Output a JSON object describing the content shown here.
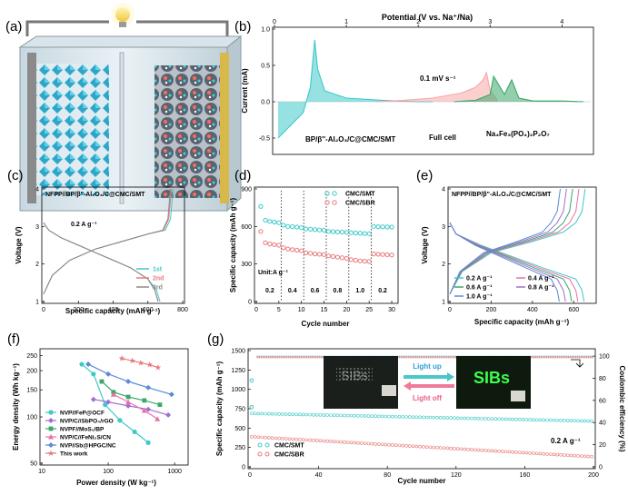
{
  "colors": {
    "teal": "#3fc8c8",
    "red": "#e87a7a",
    "green": "#3aa86a",
    "pink": "#e870a8",
    "blue": "#5a8ad8",
    "purple": "#a070d0",
    "gray": "#8a8a8a",
    "light": "#f8a8a8"
  },
  "panels": {
    "a": {
      "label": "(a)",
      "icon": "lightbulb-icon"
    },
    "b": {
      "label": "(b)",
      "title": "Potential (V vs. Na⁺/Na)",
      "ylabel": "Current (mA)",
      "xticks": [
        "0",
        "1",
        "2",
        "3",
        "4"
      ],
      "yticks": [
        "1.0",
        "0.5",
        "0.0",
        "-0.5"
      ],
      "annot_rate": "0.1 mV s⁻¹",
      "annot_anode": "BP/β''-Al₂O₃/C@CMC/SMT",
      "annot_full": "Full cell",
      "annot_cathode": "Na₄Fe₃(PO₄)₂P₂O₇",
      "chart_data": {
        "type": "line",
        "xlabel": "Potential (V vs. Na+/Na)",
        "ylabel": "Current (mA)",
        "xlim": [
          0,
          4.4
        ],
        "ylim": [
          -0.7,
          1.0
        ],
        "series": [
          {
            "name": "BP/β''-Al2O3/C@CMC/SMT",
            "x": [
              0.05,
              0.2,
              0.4,
              0.5,
              0.56,
              0.6,
              0.7,
              1.0,
              1.5,
              2.0,
              2.2
            ],
            "y": [
              -0.5,
              -0.35,
              -0.15,
              0.2,
              0.85,
              0.45,
              0.15,
              0.05,
              0.02,
              0.0,
              0.0
            ]
          },
          {
            "name": "Full cell",
            "x": [
              1.4,
              1.8,
              2.2,
              2.6,
              2.8,
              2.9,
              2.95,
              3.0,
              3.1
            ],
            "y": [
              0.0,
              0.02,
              0.05,
              0.12,
              0.2,
              0.3,
              0.4,
              0.15,
              0.02
            ]
          },
          {
            "name": "Na4Fe3(PO4)2P2O7",
            "x": [
              2.5,
              2.8,
              3.0,
              3.05,
              3.2,
              3.3,
              3.4,
              3.6,
              4.0,
              4.3
            ],
            "y": [
              0.0,
              0.02,
              0.1,
              0.35,
              0.1,
              0.3,
              0.05,
              0.01,
              0.01,
              0.0
            ]
          }
        ]
      }
    },
    "c": {
      "label": "(c)",
      "header": "NFPP//BP/β''-Al₂O₃/C@CMC/SMT",
      "rate": "0.2 A g⁻¹",
      "xlabel": "Specific capacity (mAh g⁻¹)",
      "ylabel": "Voltage (V)",
      "xticks": [
        "0",
        "200",
        "400",
        "600",
        "800"
      ],
      "yticks": [
        "1",
        "2",
        "3",
        "4"
      ],
      "legend": [
        "1st",
        "2nd",
        "3rd"
      ],
      "chart_data": {
        "type": "line",
        "xlim": [
          0,
          800
        ],
        "ylim": [
          1,
          4
        ],
        "series": [
          {
            "name": "1st",
            "charge_x": [
              0,
              50,
              150,
              300,
              450,
              600,
              700,
              730,
              745
            ],
            "charge_y": [
              1.2,
              1.7,
              2.1,
              2.4,
              2.6,
              2.8,
              2.9,
              3.2,
              4.0
            ],
            "discharge_x": [
              0,
              30,
              100,
              200,
              300,
              400,
              500,
              600,
              650,
              670
            ],
            "discharge_y": [
              3.1,
              2.9,
              2.7,
              2.5,
              2.3,
              2.1,
              1.9,
              1.6,
              1.3,
              1.0
            ]
          },
          {
            "name": "2nd",
            "charge_x": [
              0,
              50,
              150,
              300,
              450,
              600,
              690,
              720,
              735
            ],
            "charge_y": [
              1.2,
              1.7,
              2.1,
              2.4,
              2.6,
              2.8,
              2.9,
              3.2,
              4.0
            ],
            "discharge_x": [
              0,
              30,
              100,
              200,
              300,
              400,
              500,
              600,
              640,
              660
            ],
            "discharge_y": [
              3.1,
              2.9,
              2.7,
              2.5,
              2.3,
              2.1,
              1.9,
              1.6,
              1.3,
              1.0
            ]
          },
          {
            "name": "3rd",
            "charge_x": [
              0,
              50,
              150,
              300,
              450,
              600,
              685,
              715,
              730
            ],
            "charge_y": [
              1.2,
              1.7,
              2.1,
              2.4,
              2.6,
              2.8,
              2.9,
              3.2,
              4.0
            ],
            "discharge_x": [
              0,
              30,
              100,
              200,
              300,
              400,
              500,
              600,
              640,
              658
            ],
            "discharge_y": [
              3.1,
              2.9,
              2.7,
              2.5,
              2.3,
              2.1,
              1.9,
              1.6,
              1.3,
              1.0
            ]
          }
        ]
      }
    },
    "d": {
      "label": "(d)",
      "xlabel": "Cycle number",
      "ylabel": "Specific capacity (mAh g⁻¹)",
      "unit": "Unit:A g⁻¹",
      "xticks": [
        "0",
        "5",
        "10",
        "15",
        "20",
        "25",
        "30"
      ],
      "yticks": [
        "0",
        "300",
        "600",
        "900"
      ],
      "rate_labels": [
        "0.2",
        "0.4",
        "0.6",
        "0.8",
        "1.0",
        "0.2"
      ],
      "legend": [
        "CMC/SMT",
        "CMC/SBR"
      ],
      "chart_data": {
        "type": "scatter",
        "xlim": [
          0,
          31
        ],
        "ylim": [
          0,
          900
        ],
        "series": [
          {
            "name": "CMC/SMT",
            "x": [
              1,
              2,
              3,
              4,
              5,
              6,
              7,
              8,
              9,
              10,
              11,
              12,
              13,
              14,
              15,
              16,
              17,
              18,
              19,
              20,
              21,
              22,
              23,
              24,
              25,
              26,
              27,
              28,
              29,
              30
            ],
            "y": [
              760,
              650,
              640,
              635,
              630,
              610,
              600,
              598,
              595,
              590,
              580,
              578,
              575,
              572,
              570,
              560,
              558,
              556,
              555,
              553,
              550,
              548,
              546,
              544,
              542,
              600,
              598,
              597,
              596,
              595
            ]
          },
          {
            "name": "CMC/SBR",
            "x": [
              1,
              2,
              3,
              4,
              5,
              6,
              7,
              8,
              9,
              10,
              11,
              12,
              13,
              14,
              15,
              16,
              17,
              18,
              19,
              20,
              21,
              22,
              23,
              24,
              25,
              26,
              27,
              28,
              29,
              30
            ],
            "y": [
              560,
              470,
              460,
              455,
              450,
              430,
              420,
              415,
              410,
              405,
              390,
              385,
              380,
              378,
              375,
              365,
              360,
              355,
              350,
              345,
              335,
              330,
              325,
              322,
              320,
              380,
              378,
              376,
              374,
              372
            ]
          }
        ]
      }
    },
    "e": {
      "label": "(e)",
      "header": "NFPP//BP/β''-Al₂O₃/C@CMC/SMT",
      "xlabel": "Specific capacity (mAh g⁻¹)",
      "ylabel": "Voltage (V)",
      "xticks": [
        "0",
        "200",
        "400",
        "600"
      ],
      "yticks": [
        "1",
        "2",
        "3",
        "4"
      ],
      "legend": [
        "0.2 A g⁻¹",
        "0.4 A g⁻¹",
        "0.6 A g⁻¹",
        "0.8 A g⁻¹",
        "1.0 A g⁻¹"
      ],
      "chart_data": {
        "type": "line",
        "xlim": [
          0,
          700
        ],
        "ylim": [
          1,
          4
        ],
        "series": [
          {
            "name": "0.2 A g-1",
            "end_x": 650
          },
          {
            "name": "0.4 A g-1",
            "end_x": 620
          },
          {
            "name": "0.6 A g-1",
            "end_x": 590
          },
          {
            "name": "0.8 A g-1",
            "end_x": 560
          },
          {
            "name": "1.0 A g-1",
            "end_x": 530
          }
        ]
      }
    },
    "f": {
      "label": "(f)",
      "xlabel": "Power density (W kg⁻¹)",
      "ylabel": "Energy density (Wh kg⁻¹)",
      "xticks": [
        "10",
        "100",
        "1000"
      ],
      "yticks": [
        "50",
        "100",
        "150",
        "200",
        "250"
      ],
      "legend": [
        "NVP//FeP@OCF",
        "NVP/C//SbPO₄/rGO",
        "NVPF//MoS₂/BP",
        "NVP/C//FeNi₂S/CN",
        "NVP//Sb@HPGC/NC",
        "This work"
      ],
      "chart_data": {
        "type": "scatter",
        "xscale": "log",
        "yscale": "log",
        "xlim": [
          10,
          1500
        ],
        "ylim": [
          50,
          270
        ],
        "series": [
          {
            "name": "NVP//FeP@OCF",
            "x": [
              40,
              60,
              90,
              150,
              250,
              400
            ],
            "y": [
              220,
              190,
              120,
              95,
              80,
              68
            ]
          },
          {
            "name": "NVP/C//SbPO4/rGO",
            "x": [
              60,
              100,
              200,
              400,
              800
            ],
            "y": [
              130,
              125,
              118,
              112,
              103
            ]
          },
          {
            "name": "NVPF//MoS2/BP",
            "x": [
              80,
              120,
              200,
              350,
              600
            ],
            "y": [
              170,
              145,
              135,
              128,
              120
            ]
          },
          {
            "name": "NVP/C//FeNi2S/CN",
            "x": [
              120,
              200,
              350,
              550
            ],
            "y": [
              140,
              125,
              110,
              97
            ]
          },
          {
            "name": "NVP//Sb@HPGC/NC",
            "x": [
              50,
              100,
              200,
              400,
              900
            ],
            "y": [
              220,
              190,
              170,
              155,
              140
            ]
          },
          {
            "name": "This work",
            "x": [
              160,
              230,
              310,
              420,
              560
            ],
            "y": [
              240,
              232,
              225,
              218,
              210
            ]
          }
        ]
      }
    },
    "g": {
      "label": "(g)",
      "xlabel": "Cycle number",
      "ylabel": "Specific capacity (mAh g⁻¹)",
      "y2label": "Coulombic efficiency (%)",
      "xticks": [
        "0",
        "40",
        "80",
        "120",
        "160",
        "200"
      ],
      "yticks": [
        "0",
        "250",
        "500",
        "750",
        "1000",
        "1250",
        "1500"
      ],
      "y2ticks": [
        "0",
        "20",
        "40",
        "60",
        "80",
        "100"
      ],
      "rate": "0.2 A g⁻¹",
      "light_up": "Light up",
      "light_off": "Light off",
      "led_text": "SIBs",
      "legend": [
        "CMC/SMT",
        "CMC/SBR"
      ],
      "chart_data": {
        "type": "scatter",
        "xlim": [
          0,
          200
        ],
        "ylim": [
          0,
          1500
        ],
        "y2lim": [
          0,
          105
        ],
        "series": [
          {
            "name": "CMC/SMT",
            "capacity_start": 690,
            "capacity_end": 590,
            "ce": 99.5
          },
          {
            "name": "CMC/SBR",
            "capacity_start": 390,
            "capacity_end": 130,
            "ce": 99.0
          }
        ]
      }
    }
  }
}
